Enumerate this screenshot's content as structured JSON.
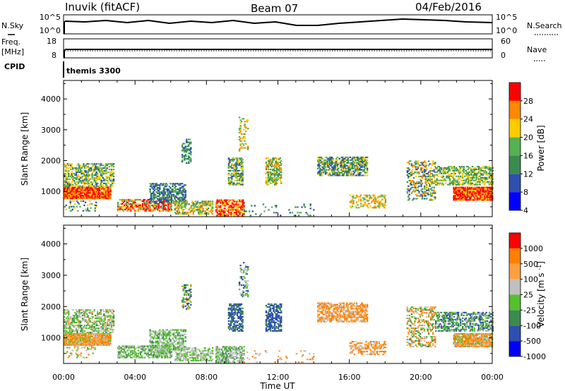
{
  "header": {
    "station": "Inuvik (fitACF)",
    "beam": "Beam 07",
    "date": "04/Feb/2016"
  },
  "panels": {
    "nsky_label": "N.Sky",
    "nsky_ticks": [
      "10^5",
      "10^0"
    ],
    "nsearch_label": "N.Search",
    "nsearch_ticks": [
      "10^5",
      "10^0"
    ],
    "freq_label_1": "Freq.",
    "freq_label_2": "[MHz]",
    "freq_ticks": [
      "18",
      "8"
    ],
    "nave_label": "Nave",
    "nave_ticks": [
      "60",
      "0"
    ],
    "cpid_label": "CPID",
    "cpid_value": "themis 3300"
  },
  "chart_data": [
    {
      "type": "heatmap",
      "name": "power",
      "ylabel": "Slant Range [km]",
      "ylim": [
        180,
        4600
      ],
      "yticks": [
        "4000",
        "3000",
        "2000",
        "1000"
      ],
      "colorbar_label": "Power [dB]",
      "colorbar_ticks": [
        "28",
        "24",
        "20",
        "16",
        "12",
        "8",
        "4"
      ],
      "colors": [
        "#0000ff",
        "#2e4fae",
        "#3d8a4f",
        "#56b155",
        "#ffcc00",
        "#ff8800",
        "#ff0000"
      ]
    },
    {
      "type": "heatmap",
      "name": "velocity",
      "ylabel": "Slant Range [km]",
      "ylim": [
        180,
        4600
      ],
      "yticks": [
        "4000",
        "3000",
        "2000",
        "1000"
      ],
      "colorbar_label": "Velocity [m s^-1]",
      "colorbar_ticks": [
        "1000",
        "500",
        "100",
        "25",
        "-25",
        "-100",
        "-500",
        "-1000"
      ],
      "colors": [
        "#0000ff",
        "#2e4fae",
        "#3d8a4f",
        "#56c030",
        "#c0c0c0",
        "#ffa040",
        "#ff8000",
        "#ff0000"
      ]
    }
  ],
  "xaxis": {
    "label": "Time UT",
    "ticks": [
      "00:00",
      "04:00",
      "08:00",
      "12:00",
      "16:00",
      "20:00",
      "00:00"
    ]
  }
}
